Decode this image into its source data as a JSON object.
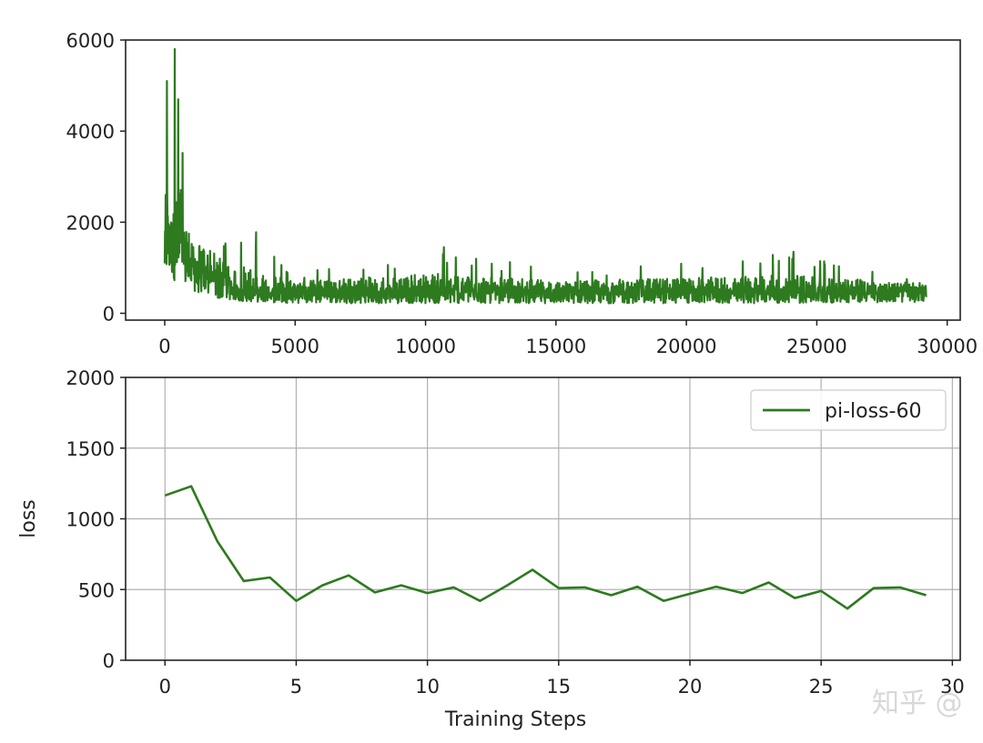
{
  "chart_data": [
    {
      "type": "line",
      "title": "",
      "xlabel": "",
      "ylabel": "",
      "xlim": [
        -1500,
        30500
      ],
      "ylim": [
        -150,
        6000
      ],
      "xticks": [
        0,
        5000,
        10000,
        15000,
        20000,
        25000,
        30000
      ],
      "xtick_labels": [
        "0",
        "5000",
        "10000",
        "15000",
        "20000",
        "25000",
        "30000"
      ],
      "yticks": [
        0,
        2000,
        4000,
        6000
      ],
      "ytick_labels": [
        "0",
        "2000",
        "4000",
        "6000"
      ],
      "grid": false,
      "color": "#2d7a1f",
      "n_points": 29200,
      "envelope_description_points": [
        {
          "x": 0,
          "low": 800,
          "high": 4300
        },
        {
          "x": 100,
          "low": 900,
          "high": 5100
        },
        {
          "x": 400,
          "low": 700,
          "high": 5800
        },
        {
          "x": 1000,
          "low": 500,
          "high": 2500
        },
        {
          "x": 2000,
          "low": 300,
          "high": 1900
        },
        {
          "x": 3500,
          "low": 250,
          "high": 1800
        },
        {
          "x": 5000,
          "low": 220,
          "high": 1000
        },
        {
          "x": 10700,
          "low": 220,
          "high": 1450
        },
        {
          "x": 15000,
          "low": 220,
          "high": 1000
        },
        {
          "x": 24100,
          "low": 220,
          "high": 1350
        },
        {
          "x": 29200,
          "low": 250,
          "high": 850
        }
      ],
      "mean_approx": 520
    },
    {
      "type": "line",
      "title": "",
      "xlabel": "Training Steps",
      "ylabel": "loss",
      "xlim": [
        -1.5,
        30.3
      ],
      "ylim": [
        0,
        2000
      ],
      "xticks": [
        0,
        5,
        10,
        15,
        20,
        25,
        30
      ],
      "xtick_labels": [
        "0",
        "5",
        "10",
        "15",
        "20",
        "25",
        "30"
      ],
      "yticks": [
        0,
        500,
        1000,
        1500,
        2000
      ],
      "ytick_labels": [
        "0",
        "500",
        "1000",
        "1500",
        "2000"
      ],
      "grid": true,
      "legend_position": "top-right",
      "series": [
        {
          "name": "pi-loss-60",
          "color": "#2d7a1f",
          "x": [
            0,
            1,
            2,
            3,
            4,
            5,
            6,
            7,
            8,
            9,
            10,
            11,
            12,
            13,
            14,
            15,
            16,
            17,
            18,
            19,
            20,
            21,
            22,
            23,
            24,
            25,
            26,
            27,
            28,
            29
          ],
          "values": [
            1165,
            1230,
            840,
            560,
            585,
            420,
            530,
            600,
            480,
            530,
            475,
            515,
            420,
            525,
            640,
            510,
            515,
            460,
            520,
            420,
            470,
            520,
            475,
            550,
            440,
            490,
            365,
            510,
            515,
            460
          ]
        }
      ]
    }
  ],
  "watermark": "知乎 @"
}
